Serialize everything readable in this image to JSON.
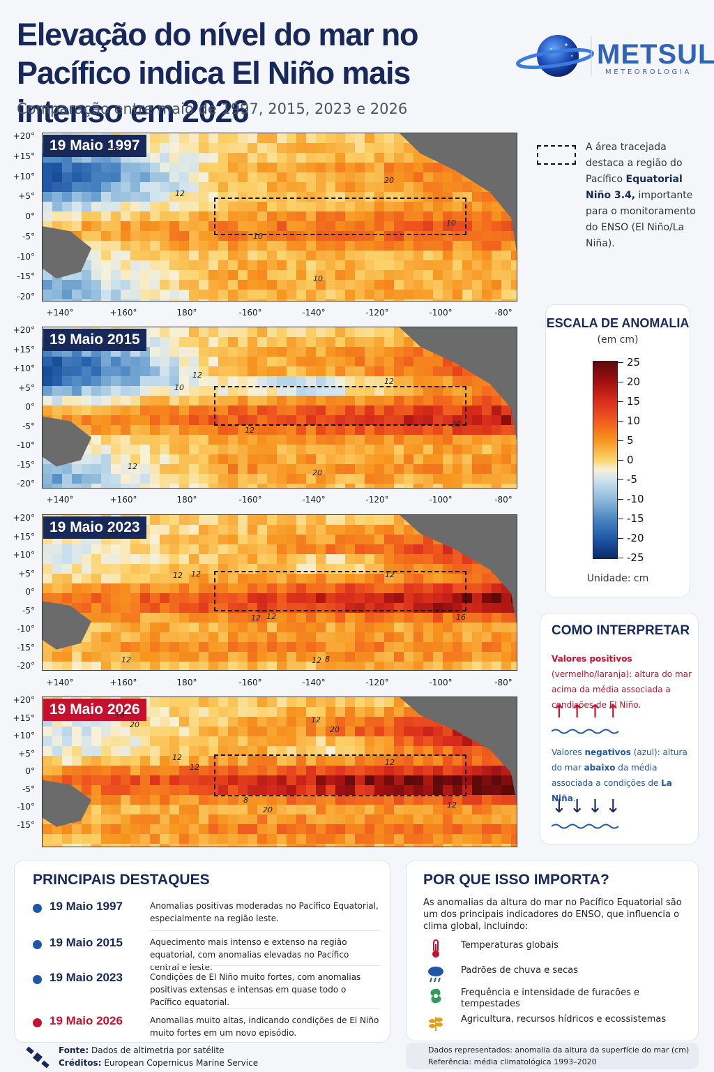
{
  "header": {
    "title": "Elevação do nível do mar no Pacífico indica El Niño mais intenso em 2026",
    "subtitle": "Comparação entre maio de 1997, 2015, 2023 e 2026"
  },
  "logo": {
    "name": "METSUL",
    "sub": "METEOROLOGIA"
  },
  "axes": {
    "lat_full": [
      "+20°",
      "+15°",
      "+10°",
      "+5°",
      "0°",
      "-5°",
      "-10°",
      "-15°",
      "-20°"
    ],
    "lat_last": [
      "+20°",
      "+15°",
      "+10°",
      "+5°",
      "0°",
      "-5°",
      "-10°",
      "-15°"
    ],
    "lon": [
      "+140°",
      "+160°",
      "180°",
      "-160°",
      "-140°",
      "-120°",
      "-100°",
      "-80°"
    ]
  },
  "maps": [
    {
      "label": "19 Maio 1997",
      "contours": [
        "20",
        "12",
        "10",
        "10",
        "20",
        "10"
      ]
    },
    {
      "label": "19 Maio 2015",
      "contours": [
        "10",
        "10",
        "12",
        "20",
        "12",
        "20",
        "12",
        "12"
      ]
    },
    {
      "label": "19 Maio 2023",
      "contours": [
        "20",
        "12",
        "12",
        "12",
        "12",
        "16",
        "12",
        "12",
        "12",
        "8"
      ]
    },
    {
      "label": "19 Maio 2026",
      "contours": [
        "16",
        "12",
        "8",
        "12",
        "12",
        "12",
        "20",
        "12",
        "20",
        "20"
      ]
    }
  ],
  "legend_note": {
    "text_a": "A área tracejada destaca a região do Pacífico",
    "text_bold": "Equatorial Niño 3.4,",
    "text_b": "importante para o monitoramento do ENSO (El Niño/La Niña)."
  },
  "scale": {
    "title": "ESCALA DE ANOMALIA",
    "subtitle": "(em cm)",
    "ticks": [
      "25",
      "20",
      "15",
      "10",
      "5",
      "0",
      "-5",
      "-10",
      "-15",
      "-20",
      "-25"
    ],
    "unit": "Unidade: cm"
  },
  "interpret": {
    "title": "COMO INTERPRETAR",
    "pos_a": "Valores positivos",
    "pos_b": "(vermelho/laranja): altura do mar acima da média associada a condições de El Niño.",
    "neg_a": "Valores",
    "neg_b": "negativos",
    "neg_c": "(azul): altura do mar",
    "neg_d": "abaixo",
    "neg_e": "da média associada a condições de",
    "neg_f": "La Niña",
    "up_arrows": "↑↑↑↑",
    "down_arrows": "↓↓↓↓",
    "pos_color": "#c8102e",
    "neg_color": "#1f57a6"
  },
  "highlights": {
    "title": "PRINCIPAIS DESTAQUES",
    "rows": [
      {
        "date": "19 Maio 1997",
        "desc": "Anomalias positivas moderadas no Pacífico Equatorial, especialmente na região leste."
      },
      {
        "date": "19 Maio 2015",
        "desc": "Aquecimento mais intenso e extenso na região equatorial, com anomalias elevadas no Pacífico central e leste."
      },
      {
        "date": "19 Maio 2023",
        "desc": "Condições de El Niño muito fortes, com anomalias positivas extensas e intensas em quase todo o Pacífico equatorial."
      },
      {
        "date": "19 Maio 2026",
        "desc": "Anomalias muito altas, indicando condições de El Niño muito fortes em um novo episódio."
      }
    ]
  },
  "why": {
    "title": "POR QUE ISSO IMPORTA?",
    "intro": "As anomalias da altura do mar no Pacífico Equatorial são um dos principais indicadores do ENSO, que influencia o clima global, incluindo:",
    "items": [
      {
        "icon": "thermometer-icon",
        "text": "Temperaturas globais"
      },
      {
        "icon": "rain-cloud-icon",
        "text": "Padrões de chuva e secas"
      },
      {
        "icon": "hurricane-icon",
        "text": "Frequência e intensidade de furacões e tempestades"
      },
      {
        "icon": "plant-icon",
        "text": "Agricultura, recursos hídricos e ecossistemas"
      }
    ]
  },
  "source": {
    "fonte_label": "Fonte:",
    "fonte": "Dados de altimetria por satélite",
    "creditos_label": "Créditos:",
    "creditos": "European Copernicus Marine Service"
  },
  "data_note": {
    "line1": "Dados representados: anomalia da altura da superfície do mar (cm)",
    "line2": "Referência: média climatológica 1993–2020"
  }
}
